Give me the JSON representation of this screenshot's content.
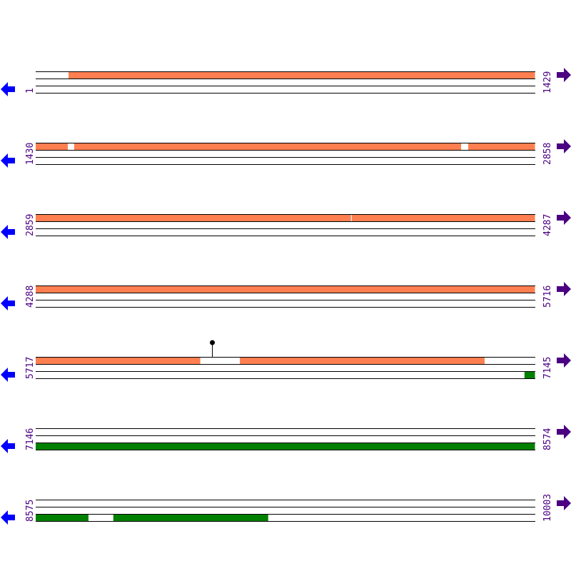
{
  "colors": {
    "cds": "#ff7f50",
    "gene": "#008000",
    "line": "#000000",
    "left_arrow": "#0000ff",
    "right_arrow": "#4b0082",
    "label": "#4b0082",
    "marker_stem": "#cc0000"
  },
  "rows": [
    {
      "start": 1,
      "end": 1429,
      "start_label": "1",
      "end_label": "1429",
      "features": [
        {
          "strand": "top",
          "start": 95,
          "end": 1429,
          "type": "cds"
        }
      ]
    },
    {
      "start": 1430,
      "end": 2858,
      "start_label": "1430",
      "end_label": "2858",
      "features": [
        {
          "strand": "top",
          "start": 1430,
          "end": 1522,
          "type": "cds"
        },
        {
          "strand": "top",
          "start": 1522,
          "end": 1540,
          "type": "gap"
        },
        {
          "strand": "top",
          "start": 1540,
          "end": 2647,
          "type": "cds"
        },
        {
          "strand": "top",
          "start": 2647,
          "end": 2667,
          "type": "gap"
        },
        {
          "strand": "top",
          "start": 2667,
          "end": 2858,
          "type": "cds"
        }
      ]
    },
    {
      "start": 2859,
      "end": 4287,
      "start_label": "2859",
      "end_label": "4287",
      "features": [
        {
          "strand": "top",
          "start": 2859,
          "end": 3761,
          "type": "cds"
        },
        {
          "strand": "top",
          "start": 3761,
          "end": 3763,
          "type": "gap"
        },
        {
          "strand": "top",
          "start": 3763,
          "end": 4287,
          "type": "cds"
        }
      ]
    },
    {
      "start": 4288,
      "end": 5716,
      "start_label": "4288",
      "end_label": "5716",
      "features": [
        {
          "strand": "top",
          "start": 4288,
          "end": 5716,
          "type": "cds"
        }
      ]
    },
    {
      "start": 5717,
      "end": 7145,
      "start_label": "5717",
      "end_label": "7145",
      "features": [
        {
          "strand": "top",
          "start": 5717,
          "end": 6188,
          "type": "cds"
        },
        {
          "strand": "top",
          "start": 6188,
          "end": 6301,
          "type": "gap"
        },
        {
          "strand": "top",
          "start": 6301,
          "end": 7001,
          "type": "cds"
        },
        {
          "strand": "bottom",
          "start": 7115,
          "end": 7145,
          "type": "gene"
        }
      ],
      "markers": [
        {
          "position": 6221
        }
      ]
    },
    {
      "start": 7146,
      "end": 8574,
      "start_label": "7146",
      "end_label": "8574",
      "features": [
        {
          "strand": "bottom",
          "start": 7146,
          "end": 8574,
          "type": "gene"
        }
      ]
    },
    {
      "start": 8575,
      "end": 10003,
      "start_label": "8575",
      "end_label": "10003",
      "features": [
        {
          "strand": "bottom",
          "start": 8575,
          "end": 8726,
          "type": "gene"
        },
        {
          "strand": "bottom",
          "start": 8726,
          "end": 8797,
          "type": "gap"
        },
        {
          "strand": "bottom",
          "start": 8797,
          "end": 9240,
          "type": "gene"
        }
      ]
    }
  ]
}
